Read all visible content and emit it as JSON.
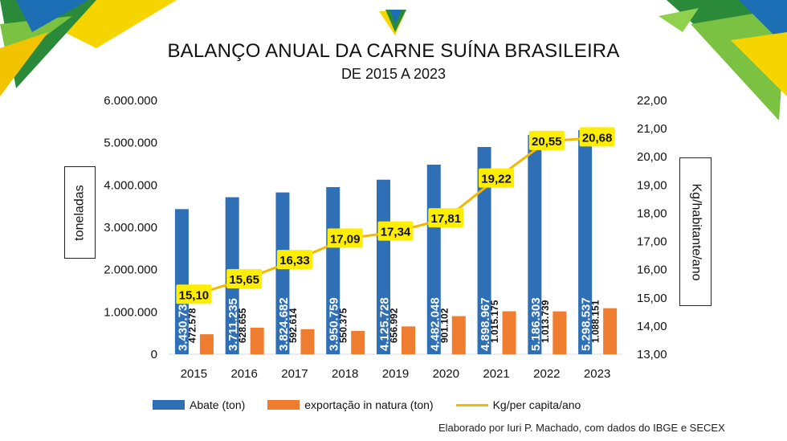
{
  "title": "BALANÇO ANUAL DA CARNE SUÍNA BRASILEIRA",
  "subtitle": "DE 2015 A 2023",
  "credit": "Elaborado por Iuri P. Machado, com dados do IBGE e SECEX",
  "colors": {
    "abate": "#2e6fb6",
    "exportacao": "#ee7d30",
    "per_capita_line": "#f4b800",
    "label_box": "#ffee00"
  },
  "chart_data": {
    "type": "bar",
    "categories": [
      "2015",
      "2016",
      "2017",
      "2018",
      "2019",
      "2020",
      "2021",
      "2022",
      "2023"
    ],
    "ylabel": "toneladas",
    "y2label": "Kg/habitante/ano",
    "ylim": [
      0,
      6000000
    ],
    "y2lim": [
      13.0,
      22.0
    ],
    "yticks": [
      "0",
      "1.000.000",
      "2.000.000",
      "3.000.000",
      "4.000.000",
      "5.000.000",
      "6.000.000"
    ],
    "y2ticks": [
      "13,00",
      "14,00",
      "15,00",
      "16,00",
      "17,00",
      "18,00",
      "19,00",
      "20,00",
      "21,00",
      "22,00"
    ],
    "grid": false,
    "legend_position": "bottom",
    "series": [
      {
        "name": "Abate (ton)",
        "type": "bar",
        "axis": "left",
        "values": [
          3430734,
          3711235,
          3824682,
          3950759,
          4125728,
          4482048,
          4898967,
          5186303,
          5298537
        ],
        "labels": [
          "3.430.734",
          "3.711.235",
          "3.824.682",
          "3.950.759",
          "4.125.728",
          "4.482.048",
          "4.898.967",
          "5.186.303",
          "5.298.537"
        ]
      },
      {
        "name": "exportação in natura (ton)",
        "type": "bar",
        "axis": "left",
        "values": [
          472578,
          628655,
          592614,
          550375,
          656992,
          901102,
          1015175,
          1013739,
          1088151
        ],
        "labels": [
          "472.578",
          "628.655",
          "592.614",
          "550.375",
          "656.992",
          "901.102",
          "1.015.175",
          "1.013.739",
          "1.088.151"
        ]
      },
      {
        "name": "Kg/per capita/ano",
        "type": "line",
        "axis": "right",
        "values": [
          15.1,
          15.65,
          16.33,
          17.09,
          17.34,
          17.81,
          19.22,
          20.55,
          20.68
        ],
        "labels": [
          "15,10",
          "15,65",
          "16,33",
          "17,09",
          "17,34",
          "17,81",
          "19,22",
          "20,55",
          "20,68"
        ]
      }
    ]
  }
}
